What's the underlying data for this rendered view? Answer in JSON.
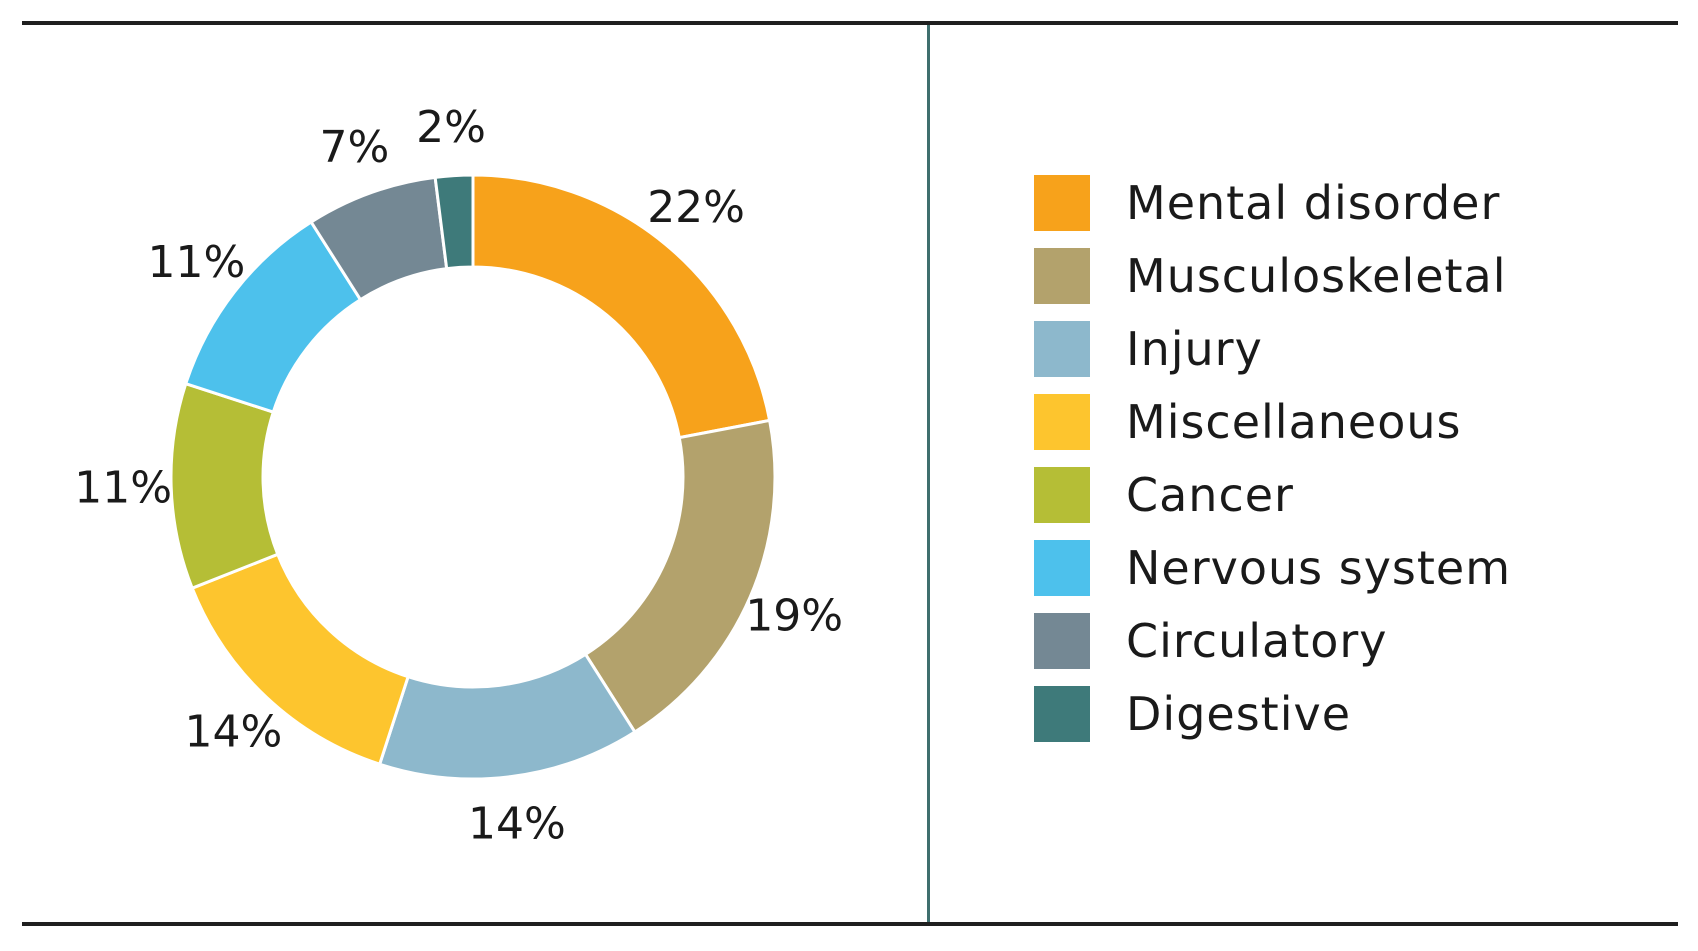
{
  "chart_data": {
    "type": "pie",
    "variant": "donut",
    "categories": [
      "Mental disorder",
      "Musculoskeletal",
      "Injury",
      "Miscellaneous",
      "Cancer",
      "Nervous system",
      "Circulatory",
      "Digestive"
    ],
    "values": [
      22,
      19,
      14,
      14,
      11,
      11,
      7,
      2
    ],
    "value_labels": [
      "22%",
      "19%",
      "14%",
      "14%",
      "11%",
      "11%",
      "7%",
      "2%"
    ],
    "colors": [
      "#F7A21B",
      "#B3A26C",
      "#8DB8CC",
      "#FDC52E",
      "#B5BE36",
      "#4DC1EC",
      "#748894",
      "#3E7A7A"
    ],
    "legend_position": "right",
    "start_angle_deg": 0,
    "direction": "clockwise"
  }
}
